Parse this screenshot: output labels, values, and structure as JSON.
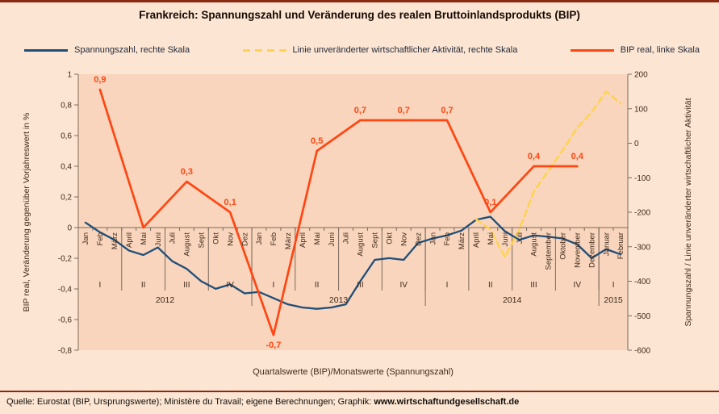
{
  "header": {
    "title": "Frankreich: Spannungszahl und Veränderung des realen Bruttoinlandsprodukts (BIP)"
  },
  "legend": [
    {
      "slug": "spannungszahl",
      "label": "Spannungszahl, rechte Skala",
      "color": "#1F4E79",
      "style": "solid"
    },
    {
      "slug": "aktivitaet",
      "label": "Linie unveränderter wirtschaftlicher Aktivität, rechte Skala",
      "color": "#FFD34F",
      "style": "dashed"
    },
    {
      "slug": "bip",
      "label": "BIP real, linke Skala",
      "color": "#FF4613",
      "style": "solid"
    }
  ],
  "footer": {
    "source_prefix": "Quelle: Eurostat (BIP, Ursprungswerte); Ministère du Travail; eigene Berechnungen; Graphik: ",
    "source_site": "www.wirtschaftundgesellschaft.de"
  },
  "chart_data": {
    "type": "line",
    "title": "Frankreich: Spannungszahl und Veränderung des realen Bruttoinlandsprodukts (BIP)",
    "xlabel": "Quartalswerte (BIP)/Monatswerte (Spannungszahl)",
    "x_months": [
      "Jan",
      "Feb",
      "März",
      "April",
      "Mai",
      "Juni",
      "Juli",
      "August",
      "Sept",
      "Okt",
      "Nov",
      "Dez",
      "Jan",
      "Feb",
      "März",
      "April",
      "Mai",
      "Juni",
      "Juli",
      "August",
      "Sept",
      "Okt",
      "Nov",
      "Dez",
      "Jan",
      "Feb",
      "März",
      "April",
      "Mai",
      "Juni",
      "Juli",
      "August",
      "September",
      "Oktober",
      "November",
      "Dezember",
      "Januar",
      "Februar"
    ],
    "quarters": [
      {
        "label": "I",
        "months": [
          0,
          2
        ]
      },
      {
        "label": "II",
        "months": [
          3,
          5
        ]
      },
      {
        "label": "III",
        "months": [
          6,
          8
        ]
      },
      {
        "label": "IV",
        "months": [
          9,
          11
        ]
      },
      {
        "label": "I",
        "months": [
          12,
          14
        ]
      },
      {
        "label": "II",
        "months": [
          15,
          17
        ]
      },
      {
        "label": "III",
        "months": [
          18,
          20
        ]
      },
      {
        "label": "IV",
        "months": [
          21,
          23
        ]
      },
      {
        "label": "I",
        "months": [
          24,
          26
        ]
      },
      {
        "label": "II",
        "months": [
          27,
          29
        ]
      },
      {
        "label": "III",
        "months": [
          30,
          32
        ]
      },
      {
        "label": "IV",
        "months": [
          33,
          35
        ]
      },
      {
        "label": "I",
        "months": [
          36,
          37
        ]
      }
    ],
    "years": [
      {
        "label": "2012",
        "months": [
          0,
          11
        ]
      },
      {
        "label": "2013",
        "months": [
          12,
          23
        ]
      },
      {
        "label": "2014",
        "months": [
          24,
          35
        ]
      },
      {
        "label": "2015",
        "months": [
          36,
          37
        ]
      }
    ],
    "left_axis": {
      "title": "BIP real, Veränderung gegenüber Vorjahreswert in %",
      "min": -0.8,
      "max": 1,
      "tick_values": [
        1,
        0.8,
        0.6,
        0.4,
        0.2,
        0,
        -0.2,
        -0.4,
        -0.6,
        -0.8
      ],
      "tick_labels": [
        "1",
        "0,8",
        "0,6",
        "0,4",
        "0,2",
        "0",
        "-0,2",
        "-0,4",
        "-0,6",
        "-0,8"
      ]
    },
    "right_axis": {
      "title": "Spannungszahl / Linie unveränderter wirtschaftlicher Aktivität",
      "min": -600,
      "max": 200,
      "tick_values": [
        200,
        100,
        0,
        -100,
        -200,
        -300,
        -400,
        -500,
        -600
      ],
      "tick_labels": [
        "200",
        "100",
        "0",
        "-100",
        "-200",
        "-300",
        "-400",
        "-500",
        "-600"
      ]
    },
    "series": [
      {
        "slug": "spannungszahl-line",
        "name": "Spannungszahl, rechte Skala",
        "type": "monthly",
        "axis": "right",
        "color": "#1F4E79",
        "width": 2.3,
        "values": [
          -230,
          -258,
          -280,
          -311,
          -324,
          -302,
          -342,
          -364,
          -400,
          -422,
          -409,
          -435,
          -431,
          -449,
          -467,
          -476,
          -480,
          -476,
          -467,
          -400,
          -338,
          -333,
          -338,
          -289,
          -276,
          -267,
          -253,
          -222,
          -213,
          -255,
          -280,
          -267,
          -271,
          -276,
          -293,
          -333,
          -307,
          -322
        ]
      },
      {
        "slug": "aktivitaet-line",
        "name": "Linie unveränderter wirtschaftlicher Aktivität, rechte Skala",
        "type": "monthly",
        "axis": "right",
        "color": "#FFD34F",
        "width": 2.5,
        "dash": "8 5",
        "values": [
          null,
          null,
          null,
          null,
          null,
          null,
          null,
          null,
          null,
          null,
          null,
          null,
          null,
          null,
          null,
          null,
          null,
          null,
          null,
          null,
          null,
          null,
          null,
          null,
          null,
          null,
          null,
          -220,
          -250,
          -330,
          -250,
          -140,
          -80,
          -20,
          45,
          90,
          150,
          115
        ]
      },
      {
        "slug": "bip-line",
        "name": "BIP real, linke Skala",
        "type": "quarterly",
        "axis": "left",
        "color": "#FF4613",
        "width": 2.7,
        "points": [
          {
            "i": 1,
            "v": 0.9,
            "label": "0,9"
          },
          {
            "i": 4,
            "v": 0.0,
            "label": null
          },
          {
            "i": 7,
            "v": 0.3,
            "label": "0,3"
          },
          {
            "i": 10,
            "v": 0.1,
            "label": "0,1"
          },
          {
            "i": 13,
            "v": -0.7,
            "label": "-0,7",
            "label_pos": "below"
          },
          {
            "i": 16,
            "v": 0.5,
            "label": "0,5"
          },
          {
            "i": 19,
            "v": 0.7,
            "label": "0,7"
          },
          {
            "i": 22,
            "v": 0.7,
            "label": "0,7"
          },
          {
            "i": 25,
            "v": 0.7,
            "label": "0,7"
          },
          {
            "i": 28,
            "v": 0.1,
            "label": "0,1"
          },
          {
            "i": 31,
            "v": 0.4,
            "label": "0,4"
          },
          {
            "i": 34,
            "v": 0.4,
            "label": "0,4"
          }
        ]
      }
    ],
    "colors": {
      "page_bg": "#FCE6D3",
      "plot_bg": "#F8D5BC",
      "rule": "#8A2A12",
      "axis_line": "#7d6a5c",
      "axis_text": "#40291a"
    },
    "layout": {
      "legend_position": "top",
      "grid": false
    }
  }
}
